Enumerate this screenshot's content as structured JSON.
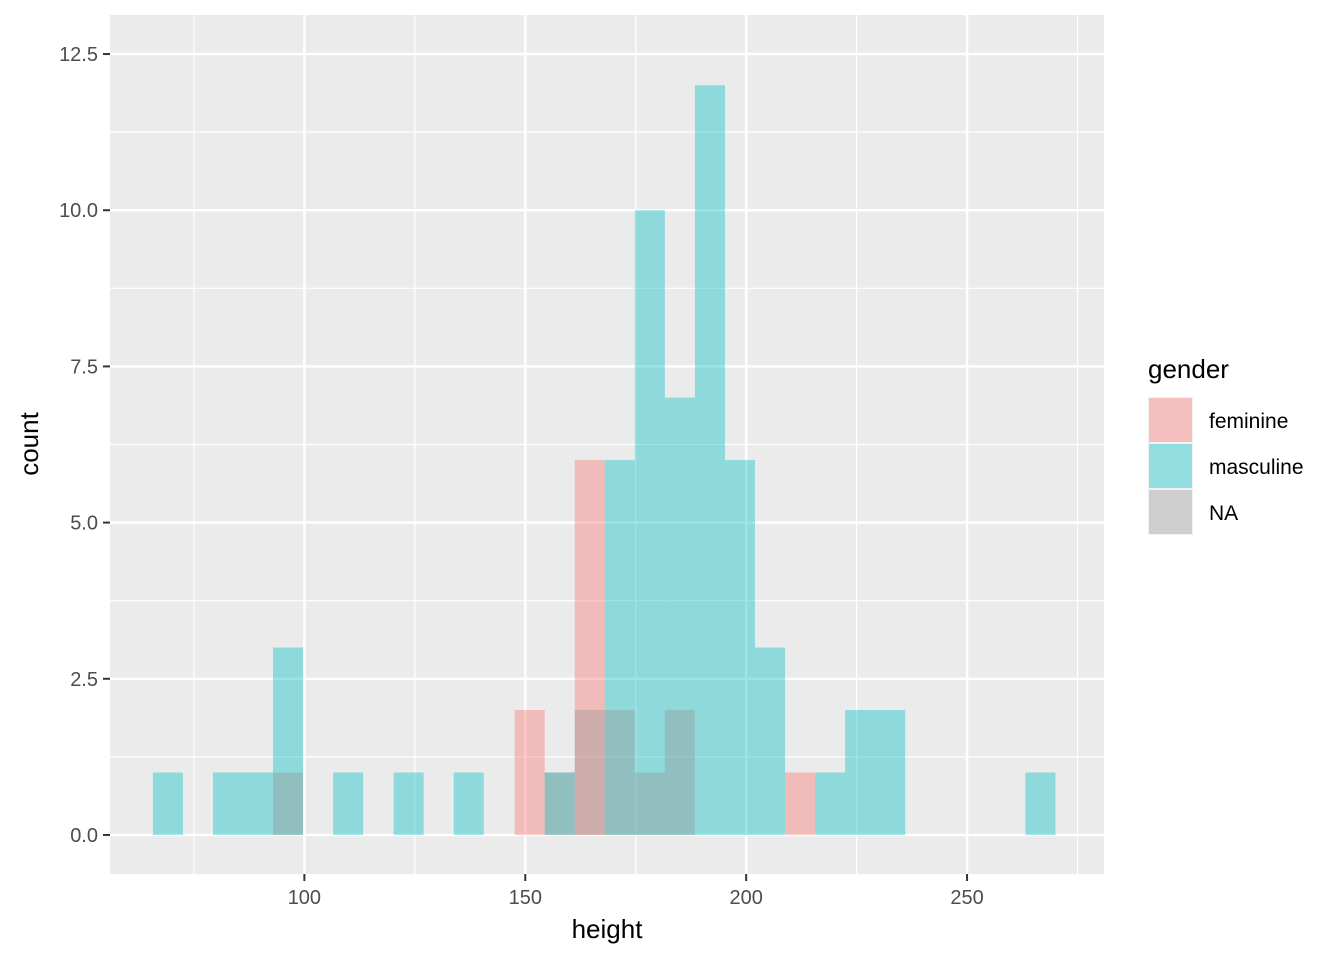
{
  "chart_data": {
    "type": "bar",
    "subtype": "overlaid-histogram",
    "title": "",
    "xlabel": "height",
    "ylabel": "count",
    "xlim": [
      56,
      281
    ],
    "ylim": [
      -0.625,
      13.125
    ],
    "xticks": [
      100,
      150,
      200,
      250
    ],
    "xtick_labels": [
      "100",
      "150",
      "200",
      "250"
    ],
    "yticks": [
      0,
      2.5,
      5,
      7.5,
      10,
      12.5
    ],
    "ytick_labels": [
      "0.0",
      "2.5",
      "5.0",
      "7.5",
      "10.0",
      "12.5"
    ],
    "grid": true,
    "legend": {
      "title": "gender",
      "placement": "right"
    },
    "bin_width": 6.8,
    "series": [
      {
        "name": "feminine",
        "color": "#F8766D",
        "bins": [
          {
            "x0": 147.6,
            "x1": 154.4,
            "count": 2
          },
          {
            "x0": 161.2,
            "x1": 168.0,
            "count": 6
          },
          {
            "x0": 208.8,
            "x1": 215.6,
            "count": 1
          }
        ]
      },
      {
        "name": "masculine",
        "color": "#00BFC4",
        "bins": [
          {
            "x0": 65.7,
            "x1": 72.5,
            "count": 1
          },
          {
            "x0": 79.3,
            "x1": 86.1,
            "count": 1
          },
          {
            "x0": 86.1,
            "x1": 92.9,
            "count": 1
          },
          {
            "x0": 92.9,
            "x1": 99.7,
            "count": 3
          },
          {
            "x0": 106.5,
            "x1": 113.3,
            "count": 1
          },
          {
            "x0": 120.2,
            "x1": 127.0,
            "count": 1
          },
          {
            "x0": 133.8,
            "x1": 140.6,
            "count": 1
          },
          {
            "x0": 154.4,
            "x1": 161.2,
            "count": 1
          },
          {
            "x0": 168.0,
            "x1": 174.8,
            "count": 6
          },
          {
            "x0": 174.8,
            "x1": 181.6,
            "count": 10
          },
          {
            "x0": 181.6,
            "x1": 188.4,
            "count": 7
          },
          {
            "x0": 188.4,
            "x1": 195.2,
            "count": 12
          },
          {
            "x0": 195.2,
            "x1": 202.0,
            "count": 6
          },
          {
            "x0": 202.0,
            "x1": 208.8,
            "count": 3
          },
          {
            "x0": 215.6,
            "x1": 222.4,
            "count": 1
          },
          {
            "x0": 222.4,
            "x1": 229.2,
            "count": 2
          },
          {
            "x0": 229.2,
            "x1": 236.0,
            "count": 2
          },
          {
            "x0": 263.2,
            "x1": 270.0,
            "count": 1
          }
        ]
      },
      {
        "name": "NA",
        "color": "#999999",
        "bins": [
          {
            "x0": 92.9,
            "x1": 99.7,
            "count": 1
          },
          {
            "x0": 154.4,
            "x1": 161.2,
            "count": 1
          },
          {
            "x0": 161.2,
            "x1": 168.0,
            "count": 2
          },
          {
            "x0": 168.0,
            "x1": 174.8,
            "count": 2
          },
          {
            "x0": 174.8,
            "x1": 181.6,
            "count": 1
          },
          {
            "x0": 181.6,
            "x1": 188.4,
            "count": 2
          }
        ]
      }
    ]
  }
}
